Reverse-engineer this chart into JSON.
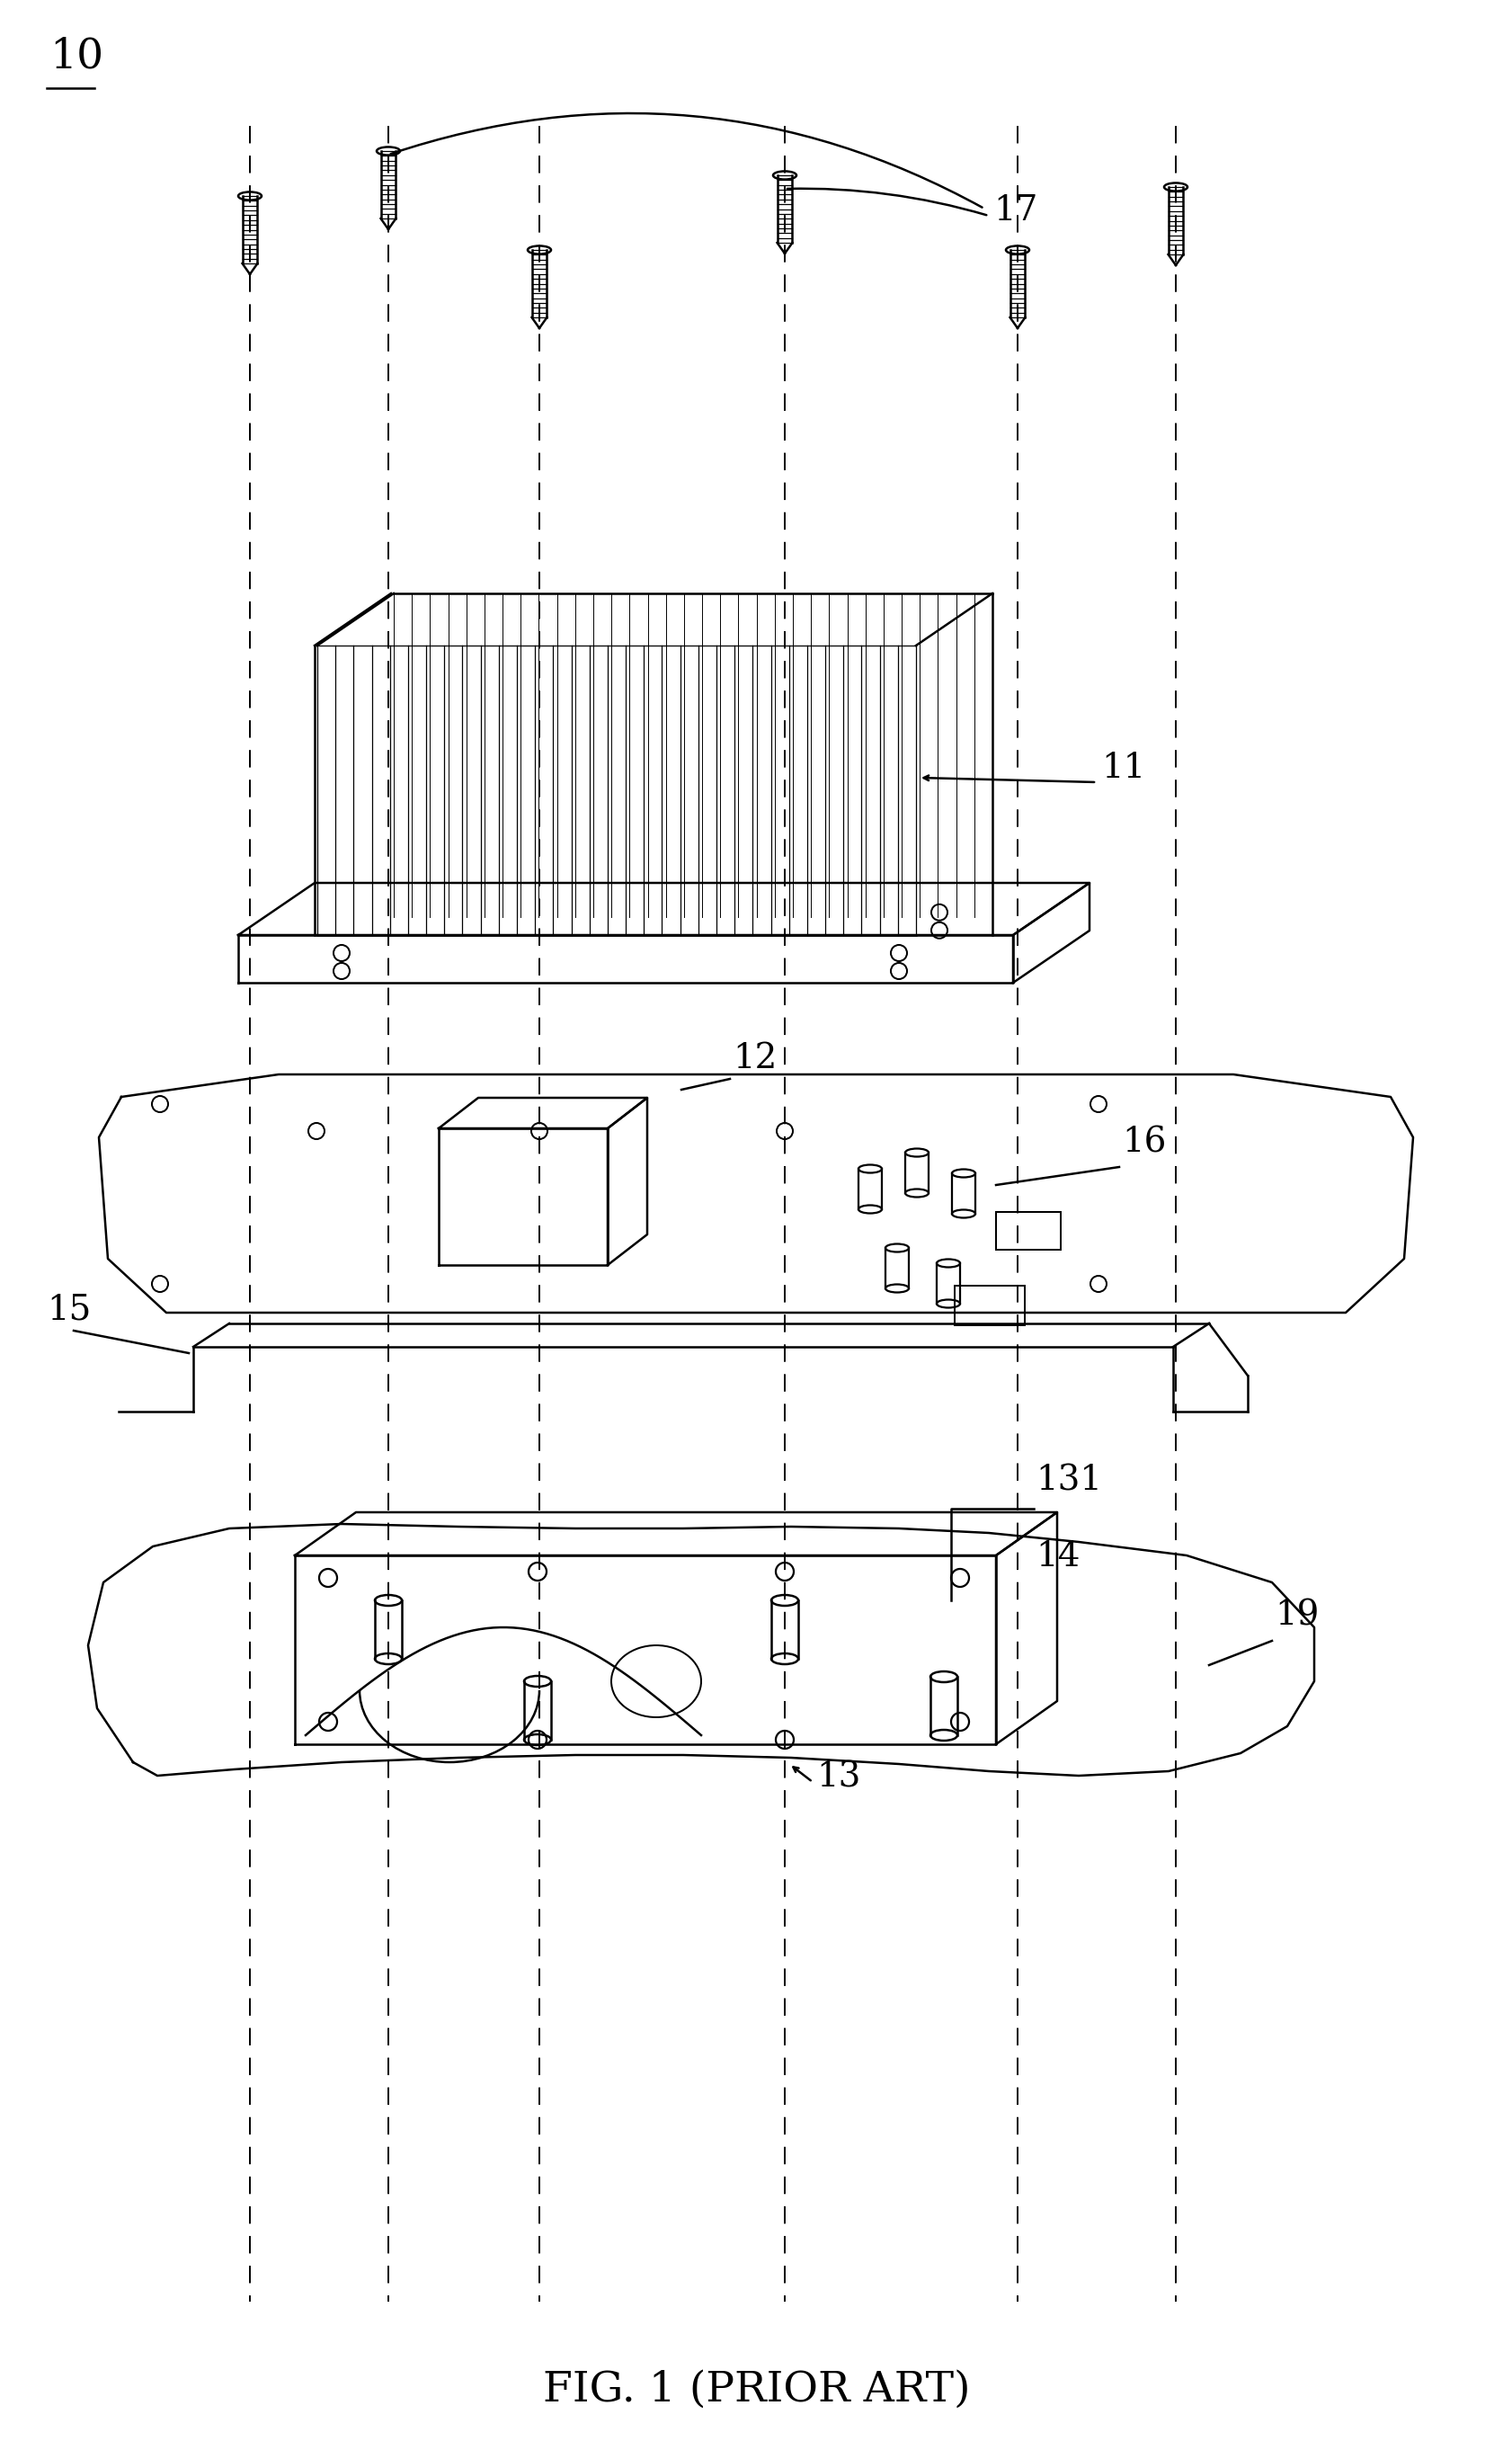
{
  "title": "FIG. 1 (PRIOR ART)",
  "label_10": "10",
  "label_11": "11",
  "label_12": "12",
  "label_13": "13",
  "label_14": "14",
  "label_15": "15",
  "label_16": "16",
  "label_17": "17",
  "label_19": "19",
  "label_131": "131",
  "bg_color": "#ffffff",
  "line_color": "#000000",
  "linewidth": 1.8,
  "dashed_linewidth": 1.4,
  "font_size_label": 28,
  "font_size_title": 34
}
